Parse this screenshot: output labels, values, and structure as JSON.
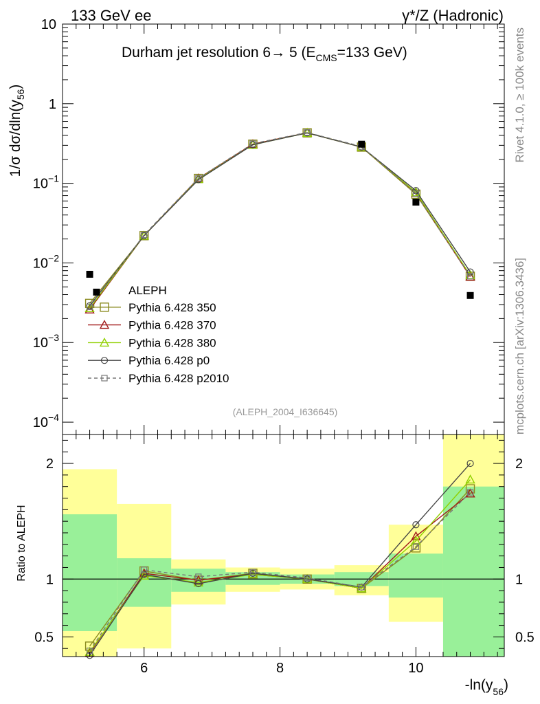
{
  "header": {
    "left": "133 GeV ee",
    "right": "γ*/Z (Hadronic)"
  },
  "side_labels": {
    "rivet": "Rivet 4.1.0, ≥ 100k events",
    "mcplots": "mcplots.cern.ch [arXiv:1306.3436]"
  },
  "colors": {
    "p350": "#8a8a1e",
    "p370": "#a01818",
    "p380": "#90d000",
    "p0": "#444444",
    "p2010": "#777777",
    "band_inner": "#99f099",
    "band_outer": "#ffff99",
    "data": "#000000"
  },
  "chart_data": [
    {
      "type": "line",
      "title": "Durham jet resolution 6→ 5 (E",
      "title_sub": "CMS",
      "title_tail": "=133 GeV)",
      "analysis_tag": "(ALEPH_2004_I636645)",
      "ylabel_main": "1/σ  dσ/dln(y",
      "ylabel_sub": "56",
      "ylabel_tail": ")",
      "yscale": "log",
      "ylim": [
        7e-05,
        10
      ],
      "xlim": [
        4.8,
        11.3
      ],
      "yticks": [
        {
          "v": 10,
          "label": "10"
        },
        {
          "v": 1,
          "label": "1"
        },
        {
          "v": 0.1,
          "label": "10",
          "exp": "−1"
        },
        {
          "v": 0.01,
          "label": "10",
          "exp": "−2"
        },
        {
          "v": 0.001,
          "label": "10",
          "exp": "−3"
        },
        {
          "v": 0.0001,
          "label": "10",
          "exp": "−4"
        }
      ],
      "data_points": {
        "name": "ALEPH",
        "x": [
          5.2,
          5.3,
          9.2,
          10.0,
          10.8
        ],
        "y": [
          0.0072,
          0.0043,
          0.31,
          0.058,
          0.0039
        ]
      },
      "series": [
        {
          "name": "Pythia 6.428 350",
          "key": "p350",
          "marker": "square-open",
          "dash": false,
          "x": [
            5.2,
            6.0,
            6.8,
            7.6,
            8.4,
            9.2,
            10.0,
            10.8
          ],
          "y": [
            0.0031,
            0.022,
            0.115,
            0.31,
            0.43,
            0.285,
            0.073,
            0.0068
          ]
        },
        {
          "name": "Pythia 6.428 370",
          "key": "p370",
          "marker": "triangle-open",
          "dash": false,
          "x": [
            5.2,
            6.0,
            6.8,
            7.6,
            8.4,
            9.2,
            10.0,
            10.8
          ],
          "y": [
            0.0026,
            0.022,
            0.115,
            0.31,
            0.43,
            0.285,
            0.076,
            0.0067
          ]
        },
        {
          "name": "Pythia 6.428 380",
          "key": "p380",
          "marker": "triangle-open",
          "dash": false,
          "x": [
            5.2,
            6.0,
            6.8,
            7.6,
            8.4,
            9.2,
            10.0,
            10.8
          ],
          "y": [
            0.0027,
            0.022,
            0.113,
            0.305,
            0.43,
            0.285,
            0.077,
            0.007
          ]
        },
        {
          "name": "Pythia 6.428 p0",
          "key": "p0",
          "marker": "circle-open",
          "dash": false,
          "x": [
            5.2,
            6.0,
            6.8,
            7.6,
            8.4,
            9.2,
            10.0,
            10.8
          ],
          "y": [
            0.0029,
            0.022,
            0.111,
            0.305,
            0.43,
            0.285,
            0.081,
            0.0077
          ]
        },
        {
          "name": "Pythia 6.428 p2010",
          "key": "p2010",
          "marker": "square-open-small",
          "dash": true,
          "x": [
            5.2,
            6.0,
            6.8,
            7.6,
            8.4,
            9.2,
            10.0,
            10.8
          ],
          "y": [
            0.0028,
            0.0225,
            0.116,
            0.315,
            0.435,
            0.29,
            0.074,
            0.0068
          ]
        }
      ]
    },
    {
      "type": "line",
      "ylabel": "Ratio to ALEPH",
      "xlabel": "-ln(y",
      "xlabel_sub": "56",
      "xlabel_tail": ")",
      "ylim": [
        0.33,
        2.25
      ],
      "xlim": [
        4.8,
        11.3
      ],
      "xticks": [
        {
          "v": 6,
          "label": "6"
        },
        {
          "v": 8,
          "label": "8"
        },
        {
          "v": 10,
          "label": "10"
        }
      ],
      "yticks": [
        {
          "v": 0.5,
          "label": "0.5"
        },
        {
          "v": 1,
          "label": "1"
        },
        {
          "v": 2,
          "label": "2"
        }
      ],
      "bands": [
        {
          "x0": 4.8,
          "x1": 5.6,
          "inner": [
            0.55,
            1.56
          ],
          "outer": [
            0.33,
            1.95
          ]
        },
        {
          "x0": 5.6,
          "x1": 6.4,
          "inner": [
            0.76,
            1.18
          ],
          "outer": [
            0.4,
            1.65
          ]
        },
        {
          "x0": 6.4,
          "x1": 7.2,
          "inner": [
            0.89,
            1.09
          ],
          "outer": [
            0.78,
            1.17
          ]
        },
        {
          "x0": 7.2,
          "x1": 8.0,
          "inner": [
            0.95,
            1.06
          ],
          "outer": [
            0.89,
            1.1
          ]
        },
        {
          "x0": 8.0,
          "x1": 8.8,
          "inner": [
            0.96,
            1.04
          ],
          "outer": [
            0.91,
            1.09
          ]
        },
        {
          "x0": 8.8,
          "x1": 9.6,
          "inner": [
            0.94,
            1.06
          ],
          "outer": [
            0.86,
            1.12
          ]
        },
        {
          "x0": 9.6,
          "x1": 10.4,
          "inner": [
            0.84,
            1.22
          ],
          "outer": [
            0.63,
            1.47
          ]
        },
        {
          "x0": 10.4,
          "x1": 11.3,
          "inner": [
            0.33,
            1.8
          ],
          "outer": [
            0.33,
            2.25
          ]
        }
      ],
      "series": [
        {
          "key": "p350",
          "marker": "square-open",
          "dash": false,
          "x": [
            5.2,
            6.0,
            6.8,
            7.6,
            8.4,
            9.2,
            10.0,
            10.8
          ],
          "y": [
            0.42,
            1.07,
            0.99,
            1.05,
            1.0,
            0.92,
            1.27,
            1.78
          ]
        },
        {
          "key": "p370",
          "marker": "triangle-open",
          "dash": false,
          "x": [
            5.2,
            6.0,
            6.8,
            7.6,
            8.4,
            9.2,
            10.0,
            10.8
          ],
          "y": [
            0.36,
            1.05,
            0.99,
            1.04,
            1.0,
            0.92,
            1.37,
            1.74
          ]
        },
        {
          "key": "p380",
          "marker": "triangle-open",
          "dash": false,
          "x": [
            5.2,
            6.0,
            6.8,
            7.6,
            8.4,
            9.2,
            10.0,
            10.8
          ],
          "y": [
            0.37,
            1.03,
            0.97,
            1.04,
            1.0,
            0.92,
            1.33,
            1.86
          ]
        },
        {
          "key": "p0",
          "marker": "circle-open",
          "dash": false,
          "x": [
            5.2,
            6.0,
            6.8,
            7.6,
            8.4,
            9.2,
            10.0,
            10.8
          ],
          "y": [
            0.34,
            1.04,
            0.96,
            1.05,
            1.0,
            0.93,
            1.47,
            2.0
          ]
        },
        {
          "key": "p2010",
          "marker": "square-open-small",
          "dash": true,
          "x": [
            5.2,
            6.0,
            6.8,
            7.6,
            8.4,
            9.2,
            10.0,
            10.8
          ],
          "y": [
            0.38,
            1.08,
            1.02,
            1.06,
            1.01,
            0.93,
            1.28,
            1.75
          ]
        }
      ]
    }
  ]
}
